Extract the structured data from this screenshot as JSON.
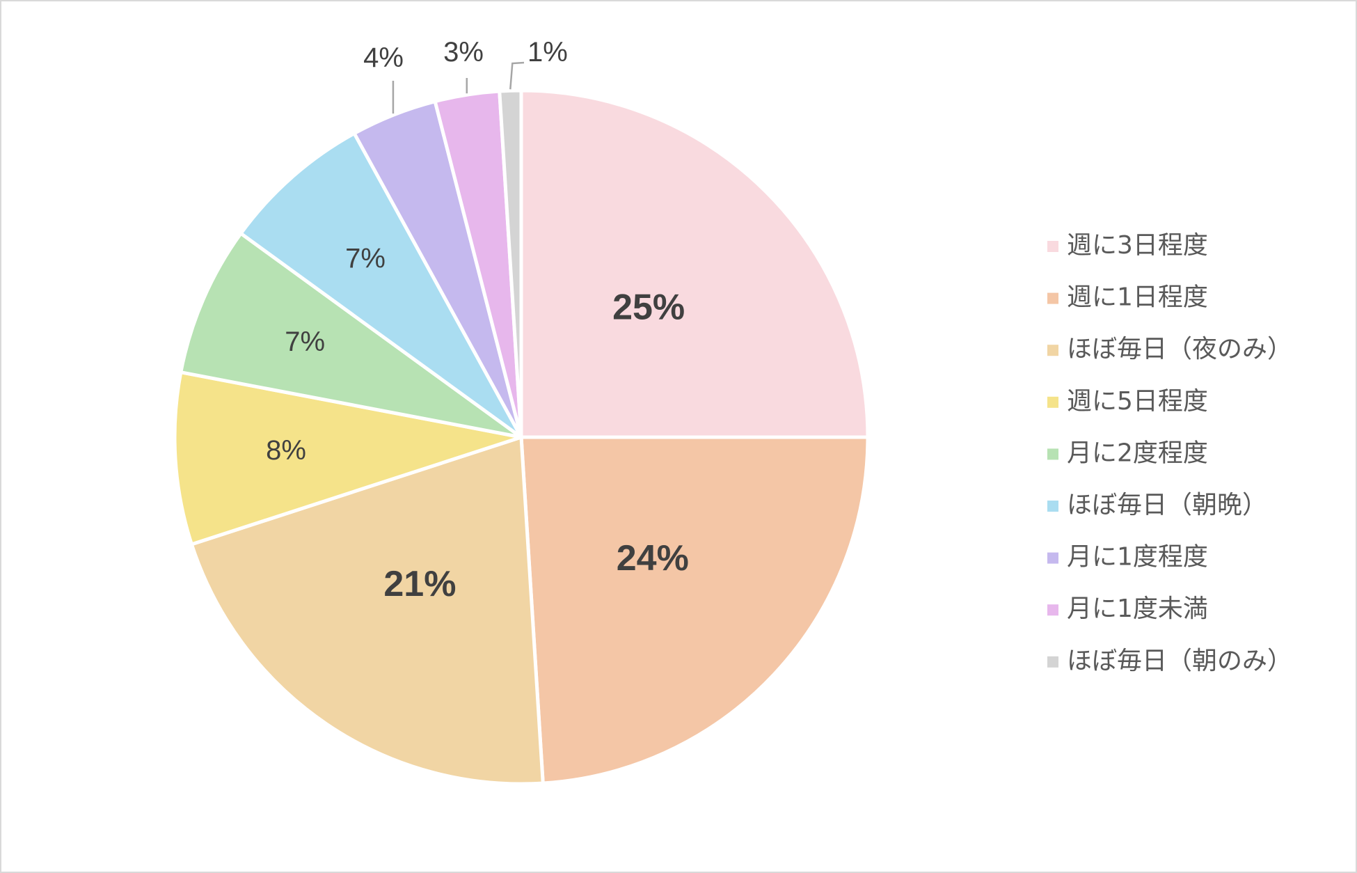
{
  "chart_data": {
    "type": "pie",
    "start_angle_deg": 0,
    "direction": "clockwise",
    "legend_position": "right",
    "slices": [
      {
        "name": "週に3日程度",
        "value": 25,
        "label": "25%",
        "color": "#F9DADF",
        "bold": true,
        "callout": false
      },
      {
        "name": "週に1日程度",
        "value": 24,
        "label": "24%",
        "color": "#F4C6A6",
        "bold": true,
        "callout": false
      },
      {
        "name": "ほぼ毎日（夜のみ）",
        "value": 21,
        "label": "21%",
        "color": "#F1D5A4",
        "bold": true,
        "callout": false
      },
      {
        "name": "週に5日程度",
        "value": 8,
        "label": "8%",
        "color": "#F5E38A",
        "bold": false,
        "callout": false
      },
      {
        "name": "月に2度程度",
        "value": 7,
        "label": "7%",
        "color": "#B7E2B3",
        "bold": false,
        "callout": false
      },
      {
        "name": "ほぼ毎日（朝晩）",
        "value": 7,
        "label": "7%",
        "color": "#AADDF1",
        "bold": false,
        "callout": false
      },
      {
        "name": "月に1度程度",
        "value": 4,
        "label": "4%",
        "color": "#C5B9EE",
        "bold": false,
        "callout": true
      },
      {
        "name": "月に1度未満",
        "value": 3,
        "label": "3%",
        "color": "#E7B7EC",
        "bold": false,
        "callout": true
      },
      {
        "name": "ほぼ毎日（朝のみ）",
        "value": 1,
        "label": "1%",
        "color": "#D4D4D4",
        "bold": false,
        "callout": true
      }
    ]
  }
}
